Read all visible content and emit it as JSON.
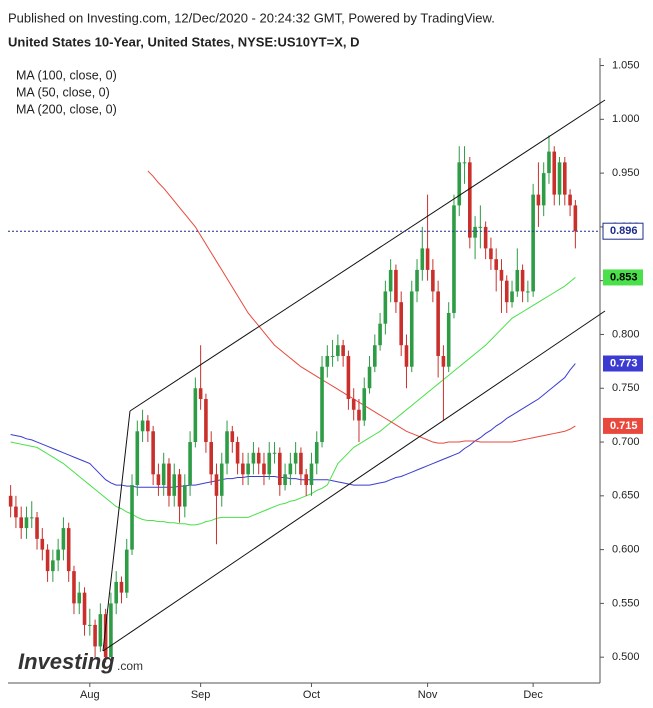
{
  "chart_data": {
    "type": "candlestick",
    "published": "Published on Investing.com, 12/Dec/2020 - 20:24:32 GMT, Powered by TradingView.",
    "title": "United States 10-Year, United States, NYSE:US10YT=X, D",
    "watermark": "Investing",
    "watermark_suffix": ".com",
    "up_color": "#2e9b45",
    "down_color": "#c9302c",
    "ylim": [
      0.476,
      1.057
    ],
    "yticks": [
      {
        "value": 0.5,
        "label": "0.500"
      },
      {
        "value": 0.55,
        "label": "0.550"
      },
      {
        "value": 0.6,
        "label": "0.600"
      },
      {
        "value": 0.65,
        "label": "0.650"
      },
      {
        "value": 0.7,
        "label": "0.700"
      },
      {
        "value": 0.75,
        "label": "0.750"
      },
      {
        "value": 0.8,
        "label": "0.800"
      },
      {
        "value": 0.85,
        "label": "0.850"
      },
      {
        "value": 0.9,
        "label": "0.900"
      },
      {
        "value": 0.95,
        "label": "0.950"
      },
      {
        "value": 1.0,
        "label": "1.000"
      },
      {
        "value": 1.05,
        "label": "1.050"
      }
    ],
    "categories": [
      null,
      null,
      null,
      null,
      null,
      null,
      null,
      null,
      null,
      null,
      null,
      null,
      null,
      null,
      null,
      "Aug",
      null,
      null,
      null,
      null,
      null,
      null,
      null,
      null,
      null,
      null,
      null,
      null,
      null,
      null,
      null,
      null,
      null,
      null,
      null,
      null,
      "Sep",
      null,
      null,
      null,
      null,
      null,
      null,
      null,
      null,
      null,
      null,
      null,
      null,
      null,
      null,
      null,
      null,
      null,
      null,
      null,
      null,
      "Oct",
      null,
      null,
      null,
      null,
      null,
      null,
      null,
      null,
      null,
      null,
      null,
      null,
      null,
      null,
      null,
      null,
      null,
      null,
      null,
      null,
      null,
      "Nov",
      null,
      null,
      null,
      null,
      null,
      null,
      null,
      null,
      null,
      null,
      null,
      null,
      null,
      null,
      null,
      null,
      null,
      null,
      null,
      "Dec",
      null,
      null,
      null,
      null,
      null,
      null,
      null,
      null
    ],
    "candles": [
      [
        0.65,
        0.66,
        0.63,
        0.64
      ],
      [
        0.64,
        0.65,
        0.62,
        0.63
      ],
      [
        0.63,
        0.64,
        0.61,
        0.62
      ],
      [
        0.62,
        0.64,
        0.61,
        0.63
      ],
      [
        0.63,
        0.645,
        0.62,
        0.63
      ],
      [
        0.63,
        0.635,
        0.6,
        0.61
      ],
      [
        0.61,
        0.62,
        0.59,
        0.6
      ],
      [
        0.6,
        0.605,
        0.57,
        0.58
      ],
      [
        0.58,
        0.6,
        0.57,
        0.59
      ],
      [
        0.59,
        0.61,
        0.58,
        0.6
      ],
      [
        0.6,
        0.63,
        0.59,
        0.62
      ],
      [
        0.62,
        0.625,
        0.57,
        0.58
      ],
      [
        0.58,
        0.585,
        0.54,
        0.55
      ],
      [
        0.55,
        0.57,
        0.54,
        0.56
      ],
      [
        0.56,
        0.565,
        0.52,
        0.53
      ],
      [
        0.53,
        0.545,
        0.52,
        0.53
      ],
      [
        0.53,
        0.535,
        0.5,
        0.51
      ],
      [
        0.51,
        0.55,
        0.505,
        0.54
      ],
      [
        0.54,
        0.545,
        0.495,
        0.5
      ],
      [
        0.5,
        0.56,
        0.5,
        0.55
      ],
      [
        0.55,
        0.58,
        0.54,
        0.57
      ],
      [
        0.57,
        0.575,
        0.55,
        0.56
      ],
      [
        0.56,
        0.61,
        0.555,
        0.6
      ],
      [
        0.6,
        0.67,
        0.595,
        0.66
      ],
      [
        0.66,
        0.72,
        0.65,
        0.71
      ],
      [
        0.71,
        0.73,
        0.7,
        0.72
      ],
      [
        0.72,
        0.725,
        0.7,
        0.71
      ],
      [
        0.71,
        0.715,
        0.66,
        0.67
      ],
      [
        0.67,
        0.68,
        0.65,
        0.66
      ],
      [
        0.66,
        0.69,
        0.65,
        0.68
      ],
      [
        0.68,
        0.685,
        0.64,
        0.65
      ],
      [
        0.65,
        0.68,
        0.64,
        0.67
      ],
      [
        0.67,
        0.675,
        0.625,
        0.64
      ],
      [
        0.64,
        0.67,
        0.63,
        0.66
      ],
      [
        0.66,
        0.71,
        0.65,
        0.7
      ],
      [
        0.7,
        0.76,
        0.695,
        0.75
      ],
      [
        0.75,
        0.79,
        0.73,
        0.74
      ],
      [
        0.74,
        0.745,
        0.69,
        0.7
      ],
      [
        0.7,
        0.71,
        0.66,
        0.67
      ],
      [
        0.67,
        0.68,
        0.605,
        0.65
      ],
      [
        0.65,
        0.69,
        0.64,
        0.68
      ],
      [
        0.68,
        0.72,
        0.67,
        0.71
      ],
      [
        0.71,
        0.715,
        0.69,
        0.7
      ],
      [
        0.7,
        0.705,
        0.67,
        0.68
      ],
      [
        0.68,
        0.69,
        0.66,
        0.67
      ],
      [
        0.67,
        0.69,
        0.66,
        0.68
      ],
      [
        0.68,
        0.7,
        0.67,
        0.69
      ],
      [
        0.69,
        0.695,
        0.67,
        0.68
      ],
      [
        0.68,
        0.69,
        0.66,
        0.67
      ],
      [
        0.67,
        0.7,
        0.665,
        0.69
      ],
      [
        0.69,
        0.7,
        0.68,
        0.69
      ],
      [
        0.69,
        0.695,
        0.65,
        0.66
      ],
      [
        0.66,
        0.68,
        0.655,
        0.67
      ],
      [
        0.67,
        0.69,
        0.66,
        0.68
      ],
      [
        0.68,
        0.7,
        0.67,
        0.69
      ],
      [
        0.69,
        0.695,
        0.66,
        0.67
      ],
      [
        0.67,
        0.675,
        0.65,
        0.66
      ],
      [
        0.66,
        0.69,
        0.65,
        0.68
      ],
      [
        0.68,
        0.71,
        0.67,
        0.7
      ],
      [
        0.7,
        0.78,
        0.695,
        0.77
      ],
      [
        0.77,
        0.79,
        0.76,
        0.78
      ],
      [
        0.78,
        0.795,
        0.77,
        0.78
      ],
      [
        0.78,
        0.8,
        0.775,
        0.79
      ],
      [
        0.79,
        0.795,
        0.77,
        0.78
      ],
      [
        0.78,
        0.785,
        0.73,
        0.74
      ],
      [
        0.74,
        0.75,
        0.72,
        0.73
      ],
      [
        0.73,
        0.74,
        0.7,
        0.72
      ],
      [
        0.72,
        0.76,
        0.715,
        0.75
      ],
      [
        0.75,
        0.78,
        0.745,
        0.77
      ],
      [
        0.77,
        0.8,
        0.765,
        0.79
      ],
      [
        0.79,
        0.82,
        0.785,
        0.81
      ],
      [
        0.81,
        0.85,
        0.8,
        0.84
      ],
      [
        0.84,
        0.87,
        0.83,
        0.86
      ],
      [
        0.86,
        0.865,
        0.82,
        0.83
      ],
      [
        0.83,
        0.84,
        0.78,
        0.79
      ],
      [
        0.79,
        0.8,
        0.75,
        0.77
      ],
      [
        0.77,
        0.85,
        0.765,
        0.84
      ],
      [
        0.84,
        0.87,
        0.83,
        0.86
      ],
      [
        0.86,
        0.9,
        0.85,
        0.88
      ],
      [
        0.88,
        0.93,
        0.85,
        0.86
      ],
      [
        0.86,
        0.87,
        0.83,
        0.84
      ],
      [
        0.84,
        0.85,
        0.76,
        0.78
      ],
      [
        0.78,
        0.79,
        0.72,
        0.77
      ],
      [
        0.77,
        0.83,
        0.765,
        0.82
      ],
      [
        0.82,
        0.93,
        0.815,
        0.92
      ],
      [
        0.92,
        0.975,
        0.91,
        0.96
      ],
      [
        0.96,
        0.975,
        0.94,
        0.96
      ],
      [
        0.96,
        0.965,
        0.88,
        0.89
      ],
      [
        0.89,
        0.91,
        0.87,
        0.9
      ],
      [
        0.9,
        0.92,
        0.88,
        0.9
      ],
      [
        0.9,
        0.905,
        0.87,
        0.88
      ],
      [
        0.88,
        0.89,
        0.86,
        0.87
      ],
      [
        0.87,
        0.88,
        0.84,
        0.86
      ],
      [
        0.86,
        0.87,
        0.82,
        0.85
      ],
      [
        0.85,
        0.855,
        0.82,
        0.83
      ],
      [
        0.83,
        0.85,
        0.825,
        0.84
      ],
      [
        0.84,
        0.88,
        0.835,
        0.86
      ],
      [
        0.86,
        0.865,
        0.83,
        0.84
      ],
      [
        0.84,
        0.85,
        0.83,
        0.84
      ],
      [
        0.84,
        0.94,
        0.835,
        0.93
      ],
      [
        0.93,
        0.96,
        0.9,
        0.92
      ],
      [
        0.92,
        0.96,
        0.91,
        0.95
      ],
      [
        0.95,
        0.985,
        0.94,
        0.97
      ],
      [
        0.97,
        0.975,
        0.92,
        0.93
      ],
      [
        0.93,
        0.965,
        0.92,
        0.96
      ],
      [
        0.96,
        0.965,
        0.92,
        0.93
      ],
      [
        0.93,
        0.935,
        0.91,
        0.92
      ],
      [
        0.92,
        0.925,
        0.88,
        0.896
      ]
    ],
    "series": [
      {
        "name": "MA (100, close, 0)",
        "color": "#3b3bd1",
        "label_text_color": "#ffffff",
        "values": [
          0.707,
          0.706,
          0.705,
          0.703,
          0.702,
          0.7,
          0.698,
          0.696,
          0.694,
          0.692,
          0.69,
          0.688,
          0.686,
          0.684,
          0.682,
          0.68,
          0.675,
          0.67,
          0.665,
          0.662,
          0.66,
          0.66,
          0.659,
          0.659,
          0.658,
          0.658,
          0.658,
          0.658,
          0.658,
          0.658,
          0.658,
          0.658,
          0.659,
          0.659,
          0.66,
          0.66,
          0.661,
          0.662,
          0.663,
          0.664,
          0.665,
          0.666,
          0.666,
          0.667,
          0.667,
          0.668,
          0.668,
          0.668,
          0.668,
          0.668,
          0.668,
          0.667,
          0.667,
          0.666,
          0.666,
          0.665,
          0.665,
          0.665,
          0.665,
          0.665,
          0.665,
          0.664,
          0.663,
          0.662,
          0.661,
          0.66,
          0.66,
          0.66,
          0.66,
          0.661,
          0.662,
          0.663,
          0.665,
          0.667,
          0.668,
          0.67,
          0.672,
          0.674,
          0.676,
          0.678,
          0.68,
          0.682,
          0.684,
          0.686,
          0.688,
          0.69,
          0.694,
          0.697,
          0.701,
          0.704,
          0.708,
          0.711,
          0.715,
          0.718,
          0.722,
          0.725,
          0.728,
          0.731,
          0.734,
          0.737,
          0.74,
          0.744,
          0.748,
          0.752,
          0.756,
          0.76,
          0.767,
          0.773
        ]
      },
      {
        "name": "MA (50, close, 0)",
        "color": "#49e049",
        "label_text_color": "#000000",
        "values": [
          0.7,
          0.699,
          0.698,
          0.697,
          0.696,
          0.695,
          0.692,
          0.689,
          0.686,
          0.683,
          0.68,
          0.676,
          0.672,
          0.668,
          0.664,
          0.66,
          0.656,
          0.652,
          0.648,
          0.644,
          0.64,
          0.638,
          0.635,
          0.633,
          0.63,
          0.628,
          0.627,
          0.627,
          0.626,
          0.626,
          0.625,
          0.625,
          0.624,
          0.624,
          0.623,
          0.623,
          0.624,
          0.626,
          0.627,
          0.629,
          0.63,
          0.63,
          0.63,
          0.63,
          0.63,
          0.63,
          0.632,
          0.634,
          0.636,
          0.638,
          0.64,
          0.642,
          0.643,
          0.645,
          0.646,
          0.648,
          0.65,
          0.652,
          0.655,
          0.657,
          0.66,
          0.67,
          0.68,
          0.685,
          0.69,
          0.695,
          0.698,
          0.701,
          0.704,
          0.707,
          0.71,
          0.714,
          0.718,
          0.722,
          0.726,
          0.73,
          0.734,
          0.738,
          0.742,
          0.746,
          0.75,
          0.754,
          0.758,
          0.762,
          0.766,
          0.77,
          0.774,
          0.778,
          0.782,
          0.786,
          0.79,
          0.795,
          0.8,
          0.805,
          0.81,
          0.815,
          0.818,
          0.821,
          0.824,
          0.827,
          0.83,
          0.833,
          0.836,
          0.839,
          0.842,
          0.845,
          0.849,
          0.853
        ]
      },
      {
        "name": "MA (200, close, 0)",
        "color": "#e8493c",
        "label_text_color": "#ffffff",
        "values": [
          null,
          null,
          null,
          null,
          null,
          null,
          null,
          null,
          null,
          null,
          null,
          null,
          null,
          null,
          null,
          null,
          null,
          null,
          null,
          null,
          null,
          null,
          null,
          null,
          null,
          null,
          0.952,
          0.947,
          0.941,
          0.936,
          0.93,
          0.924,
          0.918,
          0.912,
          0.906,
          0.9,
          0.892,
          0.884,
          0.876,
          0.868,
          0.86,
          0.852,
          0.844,
          0.836,
          0.828,
          0.82,
          0.814,
          0.808,
          0.802,
          0.796,
          0.79,
          0.786,
          0.782,
          0.778,
          0.774,
          0.77,
          0.767,
          0.764,
          0.761,
          0.758,
          0.755,
          0.752,
          0.749,
          0.746,
          0.743,
          0.74,
          0.737,
          0.734,
          0.731,
          0.728,
          0.725,
          0.722,
          0.719,
          0.716,
          0.713,
          0.71,
          0.708,
          0.706,
          0.704,
          0.702,
          0.7,
          0.699,
          0.699,
          0.7,
          0.7,
          0.7,
          0.701,
          0.701,
          0.701,
          0.7,
          0.7,
          0.7,
          0.7,
          0.7,
          0.7,
          0.7,
          0.701,
          0.702,
          0.703,
          0.704,
          0.705,
          0.706,
          0.707,
          0.708,
          0.709,
          0.71,
          0.712,
          0.715
        ]
      }
    ]
  }
}
